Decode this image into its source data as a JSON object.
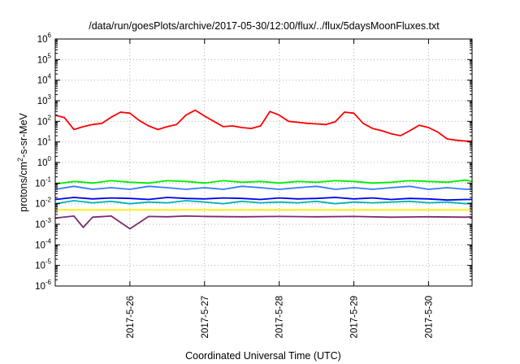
{
  "chart_data": {
    "type": "line",
    "title": "/data/run/goesPlots/archive/2017-05-30/12:00/flux/../flux/5daysMoonFluxes.txt",
    "xlabel": "Coordinated Universal Time (UTC)",
    "ylabel": "protons/cm2-s-sr-MeV",
    "yscale": "log",
    "ylim": [
      1e-06,
      1000000
    ],
    "xlim": [
      "2017-05-25T00:00",
      "2017-05-30T14:00"
    ],
    "grid": true,
    "legend": "none",
    "y_ticks": [
      {
        "value": 1e-06,
        "base": "10",
        "exp": "-6"
      },
      {
        "value": 1e-05,
        "base": "10",
        "exp": "-5"
      },
      {
        "value": 0.0001,
        "base": "10",
        "exp": "-4"
      },
      {
        "value": 0.001,
        "base": "10",
        "exp": "-3"
      },
      {
        "value": 0.01,
        "base": "10",
        "exp": "-2"
      },
      {
        "value": 0.1,
        "base": "10",
        "exp": "-1"
      },
      {
        "value": 1,
        "base": "10",
        "exp": "0"
      },
      {
        "value": 10,
        "base": "10",
        "exp": "1"
      },
      {
        "value": 100,
        "base": "10",
        "exp": "2"
      },
      {
        "value": 1000,
        "base": "10",
        "exp": "3"
      },
      {
        "value": 10000,
        "base": "10",
        "exp": "4"
      },
      {
        "value": 100000,
        "base": "10",
        "exp": "5"
      },
      {
        "value": 1000000,
        "base": "10",
        "exp": "6"
      }
    ],
    "x_ticks": [
      {
        "value": "2017-05-26T00:00",
        "label": "2017-5-26"
      },
      {
        "value": "2017-05-27T00:00",
        "label": "2017-5-27"
      },
      {
        "value": "2017-05-28T00:00",
        "label": "2017-5-28"
      },
      {
        "value": "2017-05-29T00:00",
        "label": "2017-5-29"
      },
      {
        "value": "2017-05-30T00:00",
        "label": "2017-5-30"
      }
    ],
    "series": [
      {
        "color": "#ff0000",
        "points": [
          [
            "2017-05-25T00:00",
            200
          ],
          [
            "2017-05-25T03:00",
            150
          ],
          [
            "2017-05-25T06:00",
            40
          ],
          [
            "2017-05-25T09:00",
            55
          ],
          [
            "2017-05-25T12:00",
            70
          ],
          [
            "2017-05-25T15:00",
            80
          ],
          [
            "2017-05-25T18:00",
            160
          ],
          [
            "2017-05-25T21:00",
            280
          ],
          [
            "2017-05-26T00:00",
            250
          ],
          [
            "2017-05-26T03:00",
            110
          ],
          [
            "2017-05-26T06:00",
            60
          ],
          [
            "2017-05-26T09:00",
            40
          ],
          [
            "2017-05-26T12:00",
            55
          ],
          [
            "2017-05-26T15:00",
            70
          ],
          [
            "2017-05-26T18:00",
            200
          ],
          [
            "2017-05-26T21:00",
            350
          ],
          [
            "2017-05-27T00:00",
            180
          ],
          [
            "2017-05-27T03:00",
            100
          ],
          [
            "2017-05-27T06:00",
            55
          ],
          [
            "2017-05-27T09:00",
            60
          ],
          [
            "2017-05-27T12:00",
            50
          ],
          [
            "2017-05-27T15:00",
            45
          ],
          [
            "2017-05-27T18:00",
            60
          ],
          [
            "2017-05-27T21:00",
            300
          ],
          [
            "2017-05-28T00:00",
            200
          ],
          [
            "2017-05-28T03:00",
            100
          ],
          [
            "2017-05-28T06:00",
            90
          ],
          [
            "2017-05-28T09:00",
            80
          ],
          [
            "2017-05-28T12:00",
            75
          ],
          [
            "2017-05-28T15:00",
            70
          ],
          [
            "2017-05-28T18:00",
            95
          ],
          [
            "2017-05-28T21:00",
            280
          ],
          [
            "2017-05-29T00:00",
            250
          ],
          [
            "2017-05-29T03:00",
            80
          ],
          [
            "2017-05-29T06:00",
            45
          ],
          [
            "2017-05-29T09:00",
            35
          ],
          [
            "2017-05-29T12:00",
            25
          ],
          [
            "2017-05-29T15:00",
            20
          ],
          [
            "2017-05-29T18:00",
            35
          ],
          [
            "2017-05-29T21:00",
            65
          ],
          [
            "2017-05-30T00:00",
            50
          ],
          [
            "2017-05-30T03:00",
            30
          ],
          [
            "2017-05-30T06:00",
            14
          ],
          [
            "2017-05-30T09:00",
            12
          ],
          [
            "2017-05-30T12:00",
            11
          ],
          [
            "2017-05-30T14:00",
            11
          ]
        ]
      },
      {
        "color": "#00ee00",
        "points": [
          [
            "2017-05-25T00:00",
            0.09
          ],
          [
            "2017-05-25T06:00",
            0.12
          ],
          [
            "2017-05-25T12:00",
            0.1
          ],
          [
            "2017-05-25T18:00",
            0.13
          ],
          [
            "2017-05-26T00:00",
            0.11
          ],
          [
            "2017-05-26T06:00",
            0.1
          ],
          [
            "2017-05-26T12:00",
            0.13
          ],
          [
            "2017-05-26T18:00",
            0.12
          ],
          [
            "2017-05-27T00:00",
            0.1
          ],
          [
            "2017-05-27T06:00",
            0.13
          ],
          [
            "2017-05-27T12:00",
            0.11
          ],
          [
            "2017-05-27T18:00",
            0.12
          ],
          [
            "2017-05-28T00:00",
            0.1
          ],
          [
            "2017-05-28T06:00",
            0.12
          ],
          [
            "2017-05-28T12:00",
            0.11
          ],
          [
            "2017-05-28T18:00",
            0.13
          ],
          [
            "2017-05-29T00:00",
            0.12
          ],
          [
            "2017-05-29T06:00",
            0.1
          ],
          [
            "2017-05-29T12:00",
            0.11
          ],
          [
            "2017-05-29T18:00",
            0.13
          ],
          [
            "2017-05-30T00:00",
            0.12
          ],
          [
            "2017-05-30T06:00",
            0.11
          ],
          [
            "2017-05-30T12:00",
            0.14
          ],
          [
            "2017-05-30T14:00",
            0.12
          ]
        ]
      },
      {
        "color": "#3a78ff",
        "points": [
          [
            "2017-05-25T00:00",
            0.05
          ],
          [
            "2017-05-25T06:00",
            0.07
          ],
          [
            "2017-05-25T12:00",
            0.05
          ],
          [
            "2017-05-25T18:00",
            0.06
          ],
          [
            "2017-05-26T00:00",
            0.05
          ],
          [
            "2017-05-26T06:00",
            0.07
          ],
          [
            "2017-05-26T12:00",
            0.06
          ],
          [
            "2017-05-26T18:00",
            0.05
          ],
          [
            "2017-05-27T00:00",
            0.06
          ],
          [
            "2017-05-27T06:00",
            0.05
          ],
          [
            "2017-05-27T12:00",
            0.07
          ],
          [
            "2017-05-27T18:00",
            0.06
          ],
          [
            "2017-05-28T00:00",
            0.05
          ],
          [
            "2017-05-28T06:00",
            0.06
          ],
          [
            "2017-05-28T12:00",
            0.07
          ],
          [
            "2017-05-28T18:00",
            0.05
          ],
          [
            "2017-05-29T00:00",
            0.06
          ],
          [
            "2017-05-29T06:00",
            0.05
          ],
          [
            "2017-05-29T12:00",
            0.06
          ],
          [
            "2017-05-29T18:00",
            0.07
          ],
          [
            "2017-05-30T00:00",
            0.05
          ],
          [
            "2017-05-30T06:00",
            0.06
          ],
          [
            "2017-05-30T12:00",
            0.05
          ],
          [
            "2017-05-30T14:00",
            0.05
          ]
        ]
      },
      {
        "color": "#00b4b4",
        "points": [
          [
            "2017-05-25T00:00",
            0.01
          ],
          [
            "2017-05-25T06:00",
            0.014
          ],
          [
            "2017-05-25T12:00",
            0.011
          ],
          [
            "2017-05-25T18:00",
            0.013
          ],
          [
            "2017-05-26T00:00",
            0.01
          ],
          [
            "2017-05-26T06:00",
            0.012
          ],
          [
            "2017-05-26T12:00",
            0.011
          ],
          [
            "2017-05-26T18:00",
            0.014
          ],
          [
            "2017-05-27T00:00",
            0.012
          ],
          [
            "2017-05-27T06:00",
            0.01
          ],
          [
            "2017-05-27T12:00",
            0.013
          ],
          [
            "2017-05-27T18:00",
            0.011
          ],
          [
            "2017-05-28T00:00",
            0.012
          ],
          [
            "2017-05-28T06:00",
            0.011
          ],
          [
            "2017-05-28T12:00",
            0.013
          ],
          [
            "2017-05-28T18:00",
            0.01
          ],
          [
            "2017-05-29T00:00",
            0.012
          ],
          [
            "2017-05-29T06:00",
            0.011
          ],
          [
            "2017-05-29T12:00",
            0.012
          ],
          [
            "2017-05-29T18:00",
            0.013
          ],
          [
            "2017-05-30T00:00",
            0.011
          ],
          [
            "2017-05-30T06:00",
            0.012
          ],
          [
            "2017-05-30T12:00",
            0.01
          ],
          [
            "2017-05-30T14:00",
            0.011
          ]
        ]
      },
      {
        "color": "#0000ee",
        "points": [
          [
            "2017-05-25T00:00",
            0.016
          ],
          [
            "2017-05-25T06:00",
            0.02
          ],
          [
            "2017-05-25T12:00",
            0.017
          ],
          [
            "2017-05-25T18:00",
            0.019
          ],
          [
            "2017-05-26T00:00",
            0.018
          ],
          [
            "2017-05-26T06:00",
            0.016
          ],
          [
            "2017-05-26T12:00",
            0.02
          ],
          [
            "2017-05-26T18:00",
            0.018
          ],
          [
            "2017-05-27T00:00",
            0.017
          ],
          [
            "2017-05-27T06:00",
            0.019
          ],
          [
            "2017-05-27T12:00",
            0.018
          ],
          [
            "2017-05-27T18:00",
            0.016
          ],
          [
            "2017-05-28T00:00",
            0.019
          ],
          [
            "2017-05-28T06:00",
            0.017
          ],
          [
            "2017-05-28T12:00",
            0.018
          ],
          [
            "2017-05-28T18:00",
            0.02
          ],
          [
            "2017-05-29T00:00",
            0.017
          ],
          [
            "2017-05-29T06:00",
            0.019
          ],
          [
            "2017-05-29T12:00",
            0.016
          ],
          [
            "2017-05-29T18:00",
            0.018
          ],
          [
            "2017-05-30T00:00",
            0.017
          ],
          [
            "2017-05-30T06:00",
            0.015
          ],
          [
            "2017-05-30T12:00",
            0.016
          ],
          [
            "2017-05-30T14:00",
            0.016
          ]
        ]
      },
      {
        "color": "#ffee00",
        "points": [
          [
            "2017-05-25T00:00",
            0.005
          ],
          [
            "2017-05-25T12:00",
            0.005
          ],
          [
            "2017-05-26T00:00",
            0.005
          ],
          [
            "2017-05-26T12:00",
            0.005
          ],
          [
            "2017-05-27T00:00",
            0.005
          ],
          [
            "2017-05-27T12:00",
            0.005
          ],
          [
            "2017-05-28T00:00",
            0.005
          ],
          [
            "2017-05-28T12:00",
            0.005
          ],
          [
            "2017-05-29T00:00",
            0.005
          ],
          [
            "2017-05-29T12:00",
            0.005
          ],
          [
            "2017-05-30T00:00",
            0.005
          ],
          [
            "2017-05-30T14:00",
            0.005
          ]
        ]
      },
      {
        "color": "#7f2a6e",
        "points": [
          [
            "2017-05-25T00:00",
            0.002
          ],
          [
            "2017-05-25T06:00",
            0.0025
          ],
          [
            "2017-05-25T09:00",
            0.0007
          ],
          [
            "2017-05-25T12:00",
            0.0022
          ],
          [
            "2017-05-25T18:00",
            0.0025
          ],
          [
            "2017-05-26T00:00",
            0.0006
          ],
          [
            "2017-05-26T06:00",
            0.0024
          ],
          [
            "2017-05-26T12:00",
            0.0023
          ],
          [
            "2017-05-26T18:00",
            0.0025
          ],
          [
            "2017-05-27T00:00",
            0.0024
          ],
          [
            "2017-05-27T12:00",
            0.0023
          ],
          [
            "2017-05-28T00:00",
            0.0024
          ],
          [
            "2017-05-28T12:00",
            0.0023
          ],
          [
            "2017-05-29T00:00",
            0.0024
          ],
          [
            "2017-05-29T12:00",
            0.0022
          ],
          [
            "2017-05-30T00:00",
            0.0023
          ],
          [
            "2017-05-30T12:00",
            0.0022
          ],
          [
            "2017-05-30T14:00",
            0.0023
          ]
        ]
      }
    ]
  }
}
